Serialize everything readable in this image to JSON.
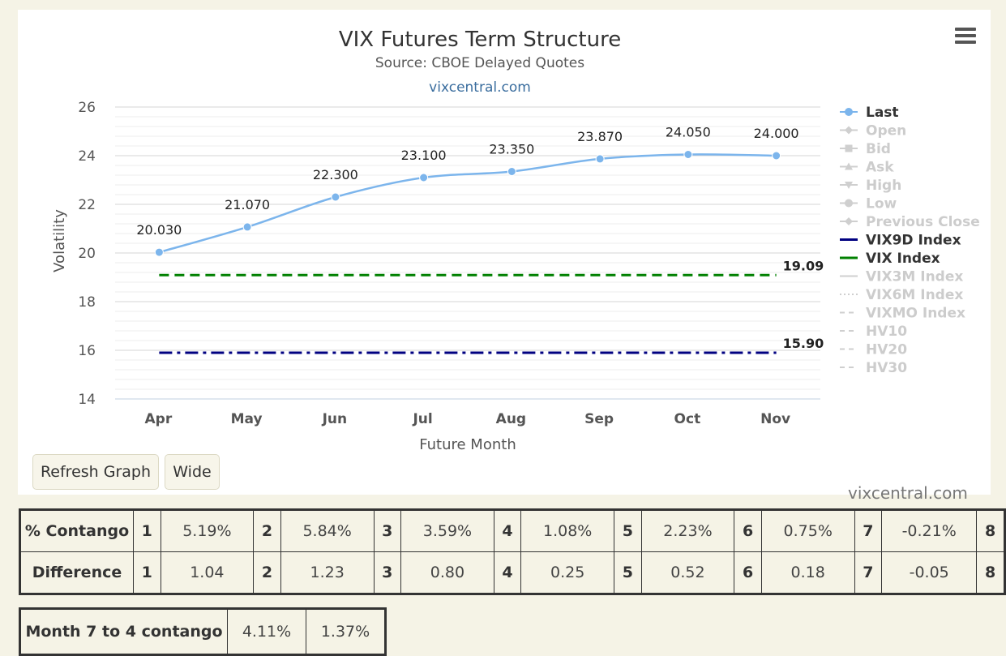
{
  "header": {
    "title": "VIX Futures Term Structure",
    "subtitle": "Source: CBOE Delayed Quotes",
    "site": "vixcentral.com"
  },
  "buttons": {
    "refresh": "Refresh Graph",
    "wide": "Wide"
  },
  "watermark": "vixcentral.com",
  "chart_data": {
    "type": "line",
    "xlabel": "Future Month",
    "ylabel": "Volatility",
    "categories": [
      "Apr",
      "May",
      "Jun",
      "Jul",
      "Aug",
      "Sep",
      "Oct",
      "Nov"
    ],
    "ylim": [
      14,
      26
    ],
    "yticks": [
      14,
      16,
      18,
      20,
      22,
      24,
      26
    ],
    "grid": true,
    "legend_position": "right",
    "series": [
      {
        "name": "Last",
        "values": [
          20.03,
          21.07,
          22.3,
          23.1,
          23.35,
          23.87,
          24.05,
          24.0
        ],
        "labels": [
          "20.030",
          "21.070",
          "22.300",
          "23.100",
          "23.350",
          "23.870",
          "24.050",
          "24.000"
        ],
        "color": "#7cb5ec",
        "style": "solid-markers"
      },
      {
        "name": "VIX Index",
        "values": [
          19.09,
          19.09,
          19.09,
          19.09,
          19.09,
          19.09,
          19.09,
          19.09
        ],
        "end_label": "19.09",
        "color": "#008000",
        "style": "dash"
      },
      {
        "name": "VIX9D Index",
        "values": [
          15.9,
          15.9,
          15.9,
          15.9,
          15.9,
          15.9,
          15.9,
          15.9
        ],
        "end_label": "15.90",
        "color": "#000080",
        "style": "dashdot"
      }
    ],
    "legend": [
      {
        "name": "Last",
        "active": true,
        "symbol": "circle",
        "color": "#7cb5ec"
      },
      {
        "name": "Open",
        "active": false,
        "symbol": "diamond"
      },
      {
        "name": "Bid",
        "active": false,
        "symbol": "square"
      },
      {
        "name": "Ask",
        "active": false,
        "symbol": "triangle"
      },
      {
        "name": "High",
        "active": false,
        "symbol": "triangle-down"
      },
      {
        "name": "Low",
        "active": false,
        "symbol": "circle"
      },
      {
        "name": "Previous Close",
        "active": false,
        "symbol": "diamond"
      },
      {
        "name": "VIX9D Index",
        "active": true,
        "symbol": "line",
        "color": "#000080"
      },
      {
        "name": "VIX Index",
        "active": true,
        "symbol": "line",
        "color": "#008000"
      },
      {
        "name": "VIX3M Index",
        "active": false,
        "symbol": "line"
      },
      {
        "name": "VIX6M Index",
        "active": false,
        "symbol": "dotted"
      },
      {
        "name": "VIXMO Index",
        "active": false,
        "symbol": "dash"
      },
      {
        "name": "HV10",
        "active": false,
        "symbol": "dash"
      },
      {
        "name": "HV20",
        "active": false,
        "symbol": "dash"
      },
      {
        "name": "HV30",
        "active": false,
        "symbol": "dash"
      }
    ]
  },
  "contango_table": {
    "rows": [
      {
        "label": "% Contango",
        "cells": [
          [
            "1",
            "5.19%"
          ],
          [
            "2",
            "5.84%"
          ],
          [
            "3",
            "3.59%"
          ],
          [
            "4",
            "1.08%"
          ],
          [
            "5",
            "2.23%"
          ],
          [
            "6",
            "0.75%"
          ],
          [
            "7",
            "-0.21%"
          ],
          [
            "8",
            ""
          ]
        ]
      },
      {
        "label": "Difference",
        "cells": [
          [
            "1",
            "1.04"
          ],
          [
            "2",
            "1.23"
          ],
          [
            "3",
            "0.80"
          ],
          [
            "4",
            "0.25"
          ],
          [
            "5",
            "0.52"
          ],
          [
            "6",
            "0.18"
          ],
          [
            "7",
            "-0.05"
          ],
          [
            "8",
            ""
          ]
        ]
      }
    ]
  },
  "month_table": {
    "label": "Month 7 to 4 contango",
    "values": [
      "4.11%",
      "1.37%"
    ]
  }
}
